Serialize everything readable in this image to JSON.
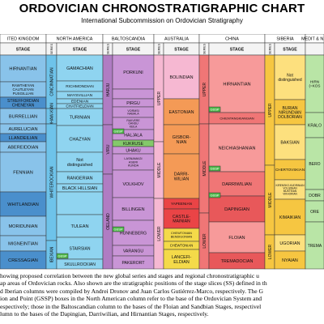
{
  "header": {
    "title": "ORDOVICIAN CHRONOSTRATIGRAPHIC CHART",
    "subtitle": "International Subcommission on Ordovician Stratigraphy"
  },
  "region_headers": [
    "ITED KINGDOM",
    "NORTH AMERICA",
    "BALTOSCANDIA",
    "AUSTRALIA",
    "CHINA",
    "SIBERIA",
    "MEDIT & N.G"
  ],
  "stage_header": "STAGE",
  "series_header": "SERIES",
  "gssp_label": "GSSP",
  "colors": {
    "uk": "#4a8fcc",
    "uk_light": "#89c3ea",
    "na": "#8fd4f0",
    "na_series": "#6ec3ea",
    "balto": "#c995d6",
    "balto_series": "#b07cc3",
    "balto_green": "#84c96a",
    "aus_pink": "#f6b8d2",
    "aus_orange": "#f49a56",
    "aus_red": "#ea4446",
    "aus_yellow": "#f4da49",
    "china_light": "#f79a9a",
    "china_mid": "#f07676",
    "china_dark": "#e8585a",
    "sib_light": "#fde07e",
    "sib_dark": "#f6c641",
    "med": "#b9e5a6",
    "gssp_green": "#4db848"
  },
  "uk": {
    "blocks": [
      {
        "label": "HIRNANTIAN"
      },
      {
        "label": "RAWTHEYAN\nCAUTLEYAN\nPUSGILLIAN"
      },
      {
        "label": "STREFFORDIAN\nCHENEYAN"
      },
      {
        "label": "BURRELLIAN"
      },
      {
        "label": "AURELUCIAN"
      },
      {
        "label": "LLANDEILIAN"
      },
      {
        "label": "ABEREIDDIAN"
      },
      {
        "label": "FENNIAN"
      },
      {
        "label": "WHITLANDIAN"
      },
      {
        "label": "MORIDUNIAN"
      },
      {
        "label": "MIGNEINTIAN"
      },
      {
        "label": "CRESSAGIAN"
      }
    ]
  },
  "na": {
    "series": [
      {
        "label": "CINCINNATIAN"
      },
      {
        "label": "MOHAW-KIAN"
      },
      {
        "label": "WHITEROCKIAN"
      },
      {
        "label": "IBEXIAN"
      }
    ],
    "stages": [
      {
        "label": "GAMACHIAN"
      },
      {
        "label": "RICHMONDIAN"
      },
      {
        "label": "MAYSVILLIAN"
      },
      {
        "label": "EDENIAN"
      },
      {
        "label": "CHATFIELDIAN"
      },
      {
        "label": "TURINIAN"
      },
      {
        "label": "CHAZYAN"
      },
      {
        "label": "Not\ndistinguished"
      },
      {
        "label": "RANGERIAN"
      },
      {
        "label": "BLACK HILLSIAN"
      },
      {
        "label": "TULEAN"
      },
      {
        "label": "STAIRSIAN"
      },
      {
        "label": "SKULLROCKIAN"
      }
    ]
  },
  "balto": {
    "series": [
      {
        "label": "HARJU"
      },
      {
        "label": "VIRU"
      },
      {
        "label": "OELAND"
      }
    ],
    "stages": [
      {
        "label": "PORKUNI"
      },
      {
        "label": "PIRGU"
      },
      {
        "label": "VORMSI\nNABALA"
      },
      {
        "label": "RAKVERE\nOANDU\nKEILA"
      },
      {
        "label": "HALJALA"
      },
      {
        "label": "KUKRUSE"
      },
      {
        "label": "UHAKU"
      },
      {
        "label": "LASNAMAGI\nASERI\nKUNDA"
      },
      {
        "label": "VOLKHOV"
      },
      {
        "label": "BILLINGEN"
      },
      {
        "label": "HUNNEBERG"
      },
      {
        "label": "VARANGU"
      },
      {
        "label": "PAKERORT"
      }
    ]
  },
  "aus": {
    "series": [
      {
        "label": "UPPER"
      },
      {
        "label": "MIDDLE"
      },
      {
        "label": "LOWER"
      }
    ],
    "stages": [
      {
        "label": "BOLINDIAN"
      },
      {
        "label": "EASTONIAN"
      },
      {
        "label": "GISBOR-\nNIAN"
      },
      {
        "label": "DARRI-\nWILIAN"
      },
      {
        "label": "YAPEENIAN"
      },
      {
        "label": "CASTLE-\nMAINIAN"
      },
      {
        "label": "CHEWTONIAN\nBENDIGONIAN"
      },
      {
        "label": "CHEWTONIAN"
      },
      {
        "label": "LANCEFI-\nELDIAN"
      }
    ]
  },
  "china": {
    "series": [
      {
        "label": "UPPER"
      },
      {
        "label": "MIDDLE"
      },
      {
        "label": "LOWER"
      }
    ],
    "stages": [
      {
        "label": "HIRNANTIAN"
      },
      {
        "label": "CHIENTANGKIANGIAN"
      },
      {
        "label": "NEICHIASHANIAN"
      },
      {
        "label": "DARRIWILIAN"
      },
      {
        "label": "DAPINGIAN"
      },
      {
        "label": "FLOIAN"
      },
      {
        "label": "TREMADOCIAN"
      }
    ]
  },
  "siberia": {
    "series": [
      {
        "label": "UPPER"
      },
      {
        "label": "MIDDLE"
      },
      {
        "label": "LOWER"
      }
    ],
    "stages": [
      {
        "label": "Not\ndistinguished"
      },
      {
        "label": "BURIAN\nNIRUNDIAN\nDOLBORIAN"
      },
      {
        "label": "BAKSIAN"
      },
      {
        "label": "CHERTOVSKIAN"
      },
      {
        "label": "KIRENSKO-KUDRINIAN\nVOLGINIAN\nMUKTEIAN\nVIKHORIAN"
      },
      {
        "label": "KIMAIKIAN"
      },
      {
        "label": "UGORIAN"
      },
      {
        "label": "NYAIAN"
      }
    ]
  },
  "med": {
    "stages": [
      {
        "label": "HIRN\n(=KOS"
      },
      {
        "label": "KRALO"
      },
      {
        "label": "BERO"
      },
      {
        "label": "DOBR"
      },
      {
        "label": "ORE"
      },
      {
        "label": "TREMA"
      }
    ]
  },
  "caption": [
    "howing proposed correlation between the new global series and stages and regional chronostratigraphic u",
    "ap areas of Ordovician rocks. Also shown are the stratigraphic positions of the stage slices (SS) defined in th",
    "d Iberian columns were compiled by Andrei Dronov and Juan Carlos Gutiérrez-Marco, respectively. The G",
    "ion and Point (GSSP) boxes in the North American column refer to the base of the Ordovician System and",
    "espectively; those in the Baltoscandian column to the bases of the Floian and Sandbian Stages, respectivel",
    "lumn to the bases of the Dapingian, Darriwilian, and Hirnantian Stages, respectively."
  ]
}
